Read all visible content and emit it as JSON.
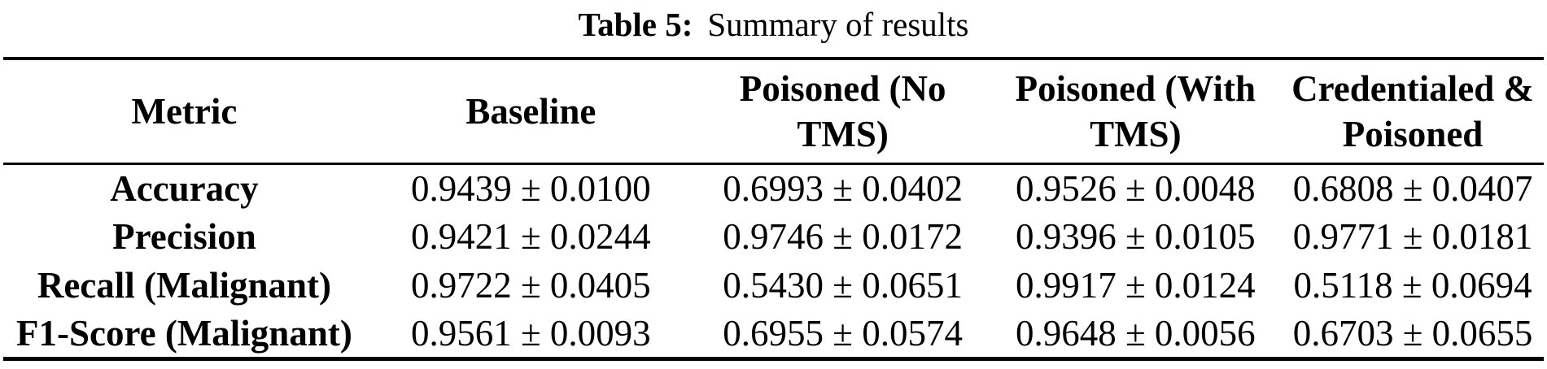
{
  "page": {
    "background_color": "#ffffff",
    "text_color": "#000000"
  },
  "caption": {
    "label": "Table 5:",
    "text": "Summary of results"
  },
  "chart_data": {
    "type": "table",
    "title": "Table 5: Summary of results",
    "columns": [
      "Metric",
      "Baseline",
      "Poisoned (No TMS)",
      "Poisoned (With TMS)",
      "Credentialed & Poisoned"
    ],
    "rows": [
      [
        "Accuracy",
        "0.9439 ± 0.0100",
        "0.6993 ± 0.0402",
        "0.9526 ± 0.0048",
        "0.6808 ± 0.0407"
      ],
      [
        "Precision",
        "0.9421 ± 0.0244",
        "0.9746 ± 0.0172",
        "0.9396 ± 0.0105",
        "0.9771 ± 0.0181"
      ],
      [
        "Recall (Malignant)",
        "0.9722 ± 0.0405",
        "0.5430 ± 0.0651",
        "0.9917 ± 0.0124",
        "0.5118 ± 0.0694"
      ],
      [
        "F1-Score (Malignant)",
        "0.9561 ± 0.0093",
        "0.6955 ± 0.0574",
        "0.9648 ± 0.0056",
        "0.6703 ± 0.0655"
      ]
    ],
    "layout": {
      "rules": "booktabs (thick top rule, thin mid rule, thick bottom rule)",
      "header_bold": true,
      "metric_column_bold": true
    }
  }
}
